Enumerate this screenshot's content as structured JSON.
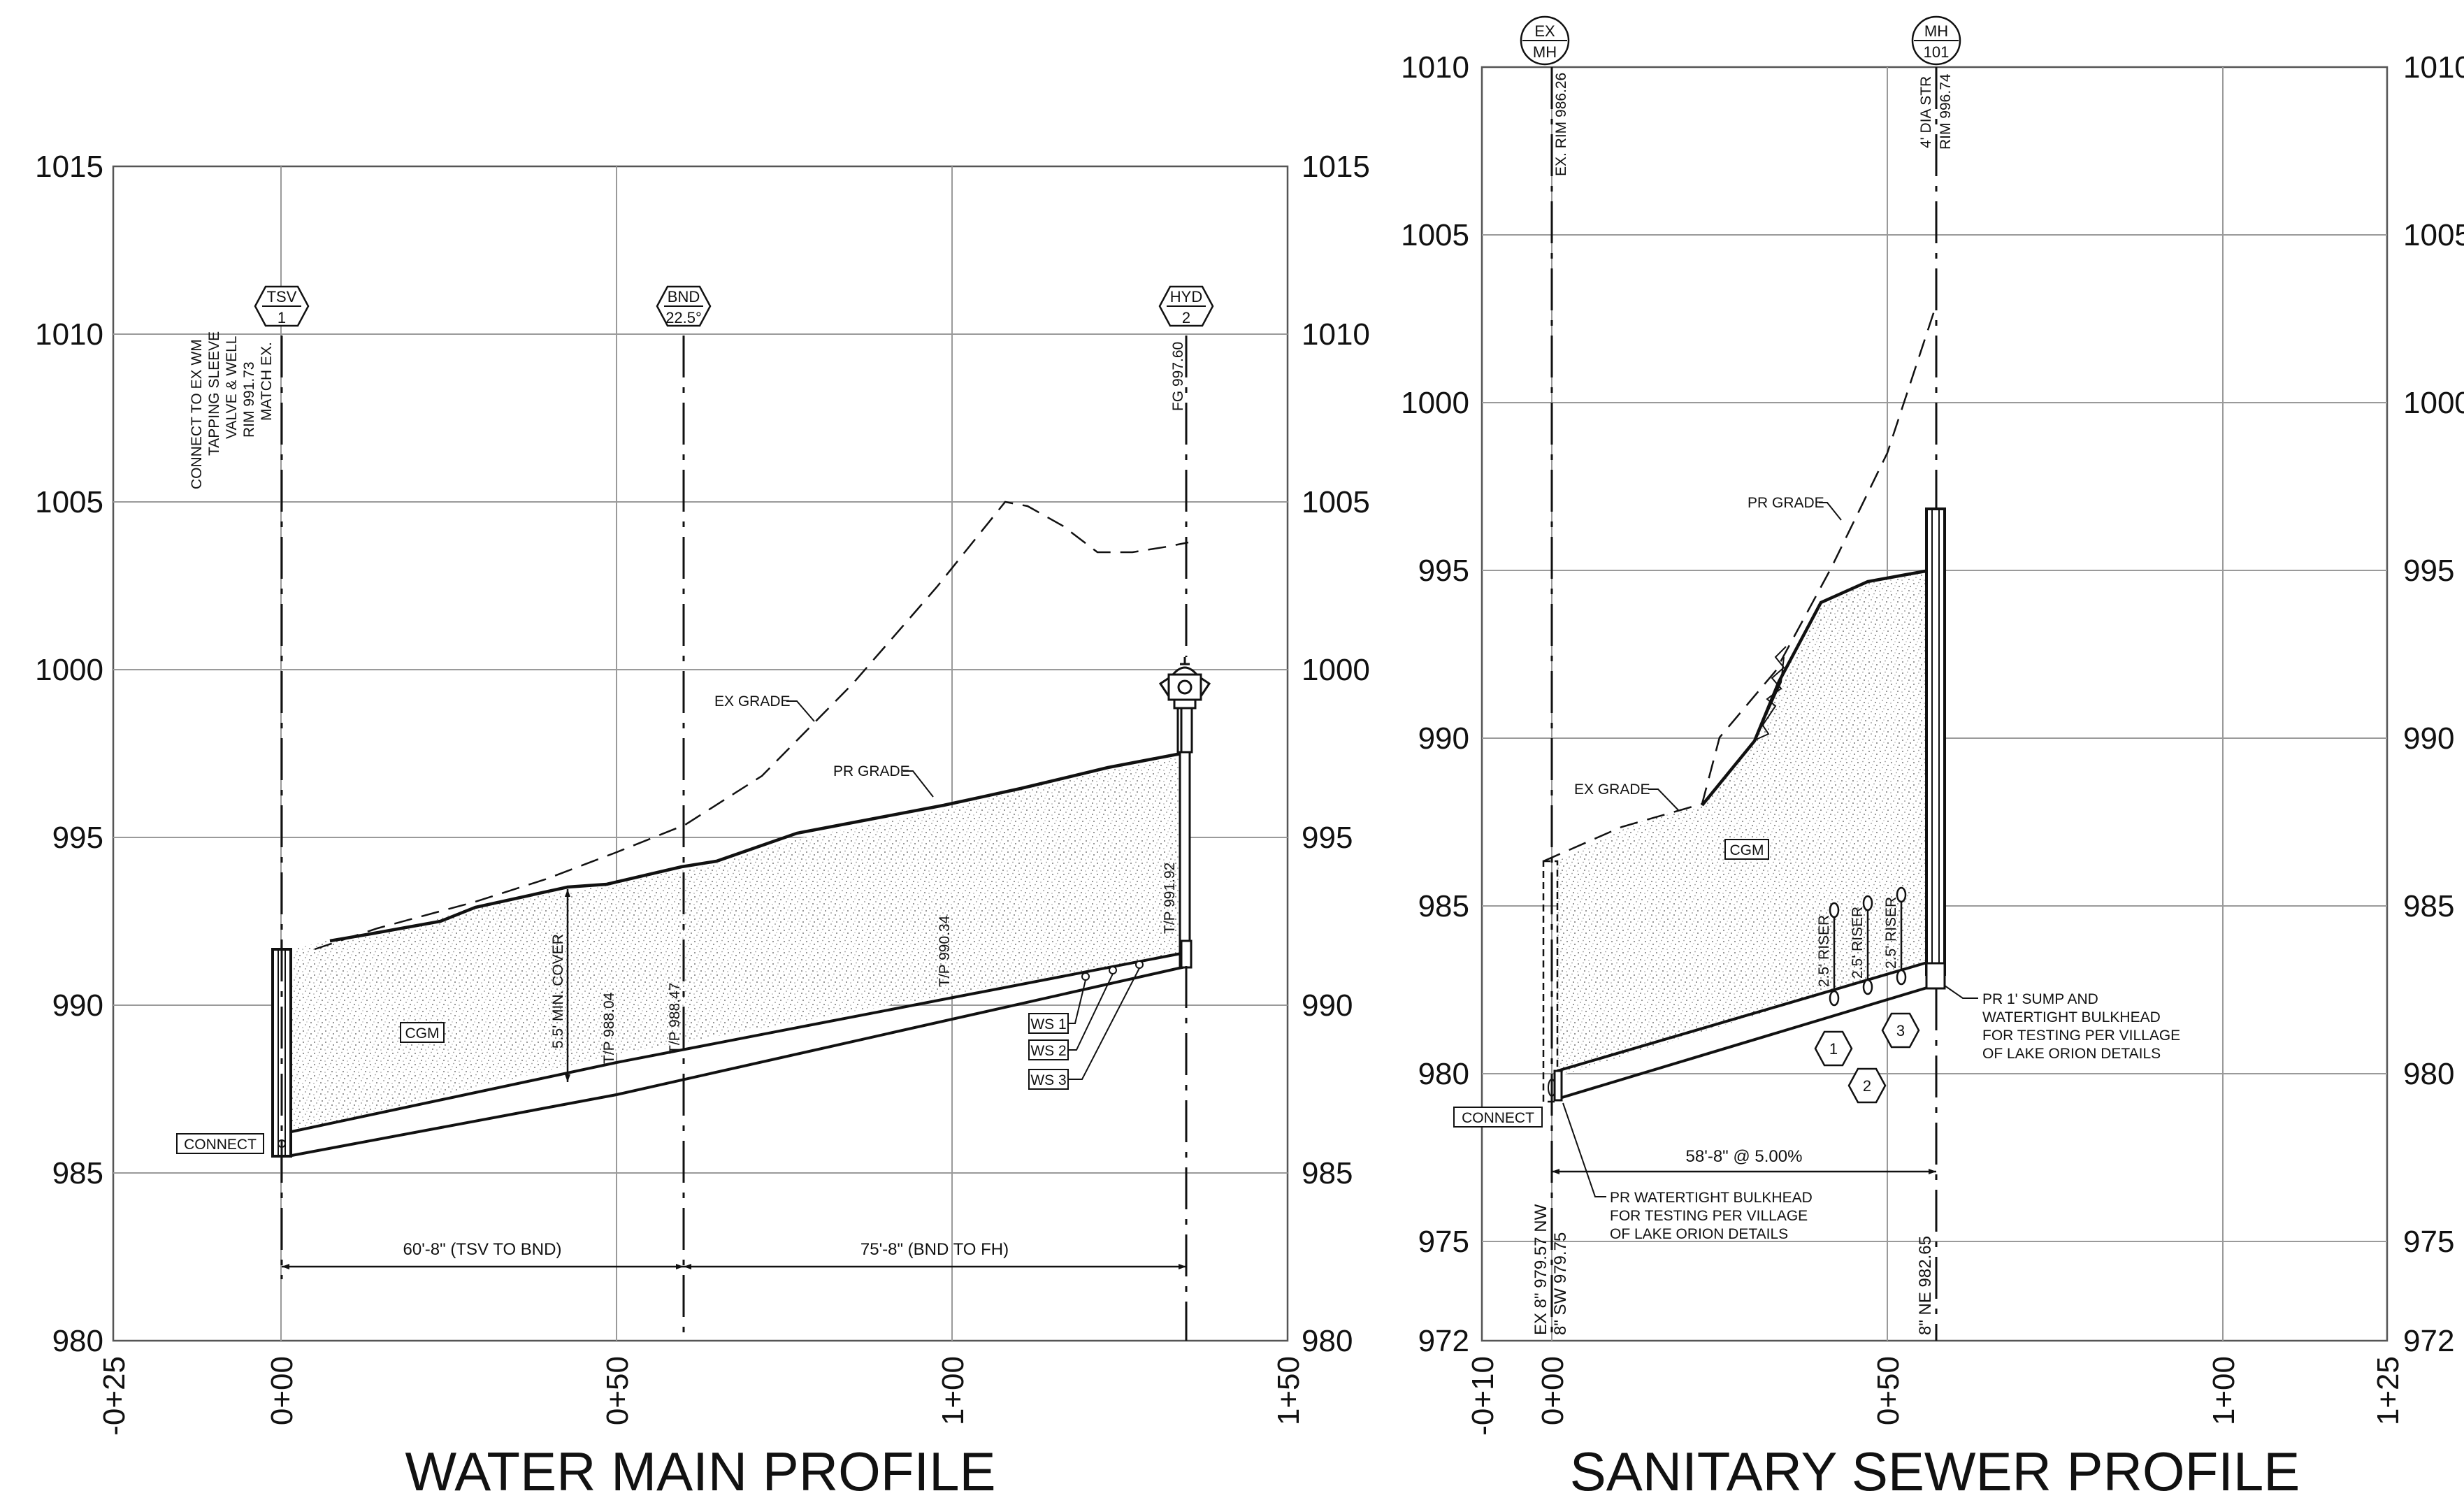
{
  "water_main": {
    "title": "WATER MAIN PROFILE",
    "elev_labels": [
      "1015",
      "1010",
      "1005",
      "1000",
      "995",
      "990",
      "985",
      "980"
    ],
    "station_labels": [
      "-0+25",
      "0+00",
      "0+50",
      "1+00",
      "1+50"
    ],
    "structures": [
      {
        "top": "TSV",
        "bottom": "1"
      },
      {
        "top": "BND",
        "bottom": "22.5°"
      },
      {
        "top": "HYD",
        "bottom": "2"
      }
    ],
    "tsv_notes": [
      "CONNECT TO EX WM",
      "TAPPING SLEEVE",
      "VALVE & WELL",
      "RIM 991.73",
      "MATCH EX."
    ],
    "hyd_note": "FG 997.60",
    "ex_grade": "EX GRADE",
    "pr_grade": "PR GRADE",
    "cover": "5.5' MIN. COVER",
    "cgm": "CGM",
    "connect": "CONNECT",
    "tp_labels": [
      "T/P 988.04",
      "T/P 988.47",
      "T/P 990.34",
      "T/P 991.92"
    ],
    "ws_labels": [
      "WS 1",
      "WS 2",
      "WS 3"
    ],
    "dims": [
      "60'-8\" (TSV TO BND)",
      "75'-8\" (BND TO FH)"
    ]
  },
  "sanitary": {
    "title": "SANITARY SEWER PROFILE",
    "elev_labels": [
      "1010",
      "1005",
      "1000",
      "995",
      "990",
      "985",
      "980",
      "975",
      "972"
    ],
    "station_labels": [
      "-0+10",
      "0+00",
      "0+50",
      "1+00",
      "1+25"
    ],
    "structures": [
      {
        "top": "EX",
        "bottom": "MH"
      },
      {
        "top": "MH",
        "bottom": "101"
      }
    ],
    "ex_mh_note": "EX. RIM 986.26",
    "mh_notes": [
      "4' DIA STR",
      "RIM 996.74"
    ],
    "pr_grade": "PR GRADE",
    "ex_grade": "EX GRADE",
    "cgm": "CGM",
    "connect": "CONNECT",
    "riser": "2.5' RISER",
    "riser_tags": [
      "1",
      "2",
      "3"
    ],
    "sump_notes": [
      "PR 1' SUMP AND",
      "WATERTIGHT BULKHEAD",
      "FOR TESTING PER VILLAGE",
      "OF LAKE ORION DETAILS"
    ],
    "bulkhead_notes": [
      "PR  WATERTIGHT BULKHEAD",
      "FOR TESTING PER VILLAGE",
      "OF LAKE ORION DETAILS"
    ],
    "dim": "58'-8\" @ 5.00%",
    "inverts_ex": [
      "EX 8\" 979.57 NW",
      "8\" SW 979.75"
    ],
    "invert_mh": "8\" NE 982.65"
  }
}
